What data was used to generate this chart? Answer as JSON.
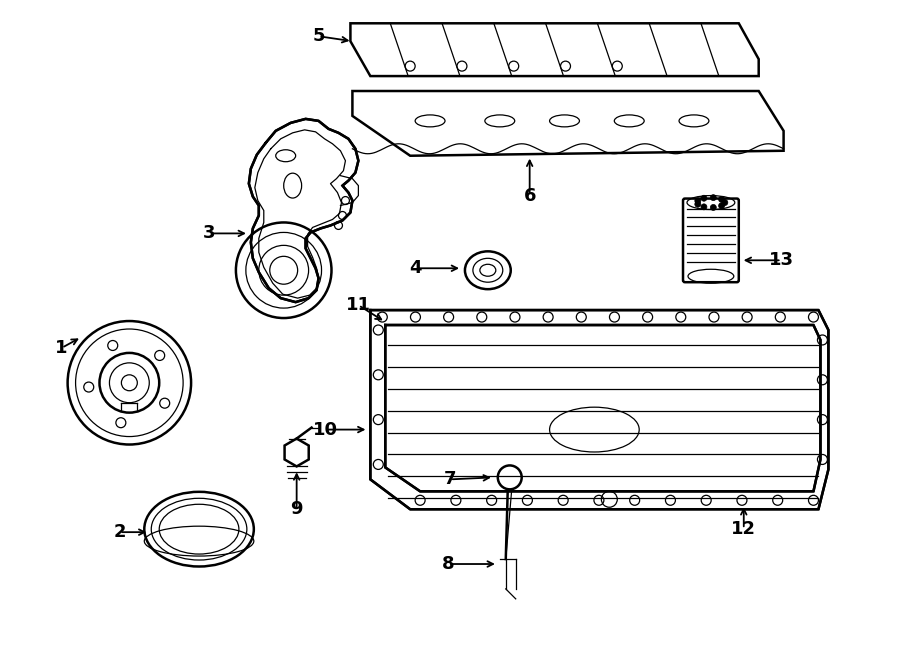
{
  "background_color": "#ffffff",
  "line_color": "#000000",
  "lw_main": 1.8,
  "lw_thin": 0.9,
  "figsize": [
    9.0,
    6.61
  ],
  "dpi": 100
}
